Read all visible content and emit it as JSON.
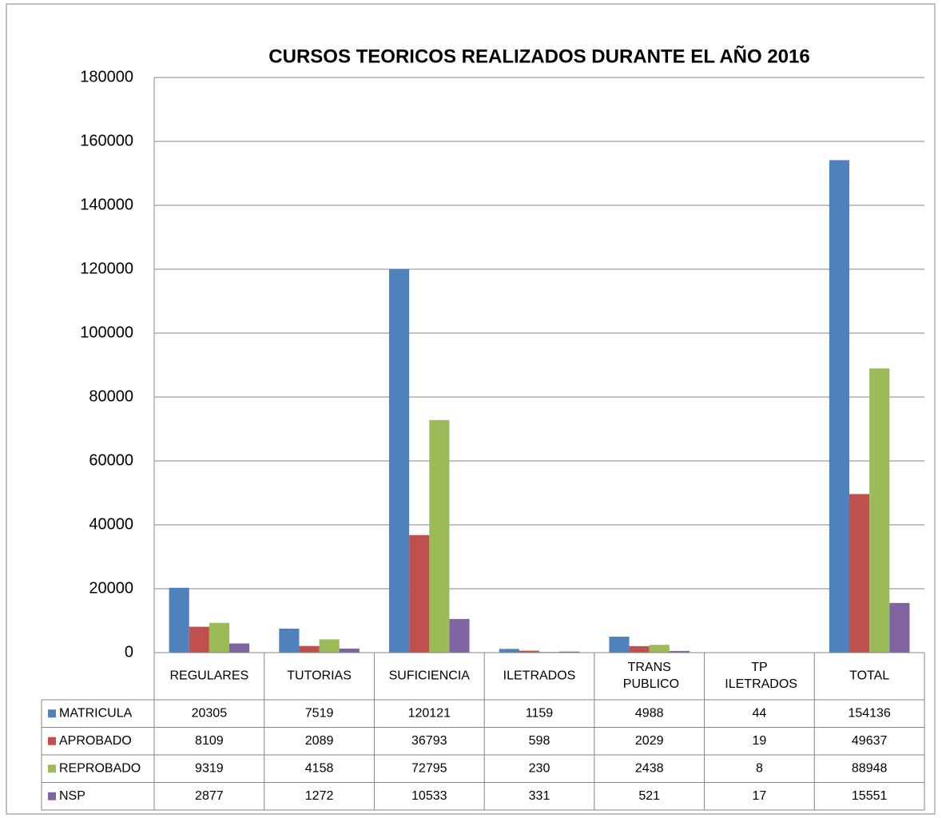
{
  "chart_data": {
    "type": "bar",
    "title": "CURSOS TEORICOS REALIZADOS DURANTE EL AÑO 2016",
    "categories": [
      "REGULARES",
      "TUTORIAS",
      "SUFICIENCIA",
      "ILETRADOS",
      "TRANS PUBLICO",
      "TP ILETRADOS",
      "TOTAL"
    ],
    "series": [
      {
        "name": "MATRICULA",
        "color": "#4f81bd",
        "values": [
          20305,
          7519,
          120121,
          1159,
          4988,
          44,
          154136
        ]
      },
      {
        "name": "APROBADO",
        "color": "#c0504d",
        "values": [
          8109,
          2089,
          36793,
          598,
          2029,
          19,
          49637
        ]
      },
      {
        "name": "REPROBADO",
        "color": "#9bbb59",
        "values": [
          9319,
          4158,
          72795,
          230,
          2438,
          8,
          88948
        ]
      },
      {
        "name": "NSP",
        "color": "#8064a2",
        "values": [
          2877,
          1272,
          10533,
          331,
          521,
          17,
          15551
        ]
      }
    ],
    "ylim": [
      0,
      180000
    ],
    "yticks": [
      0,
      20000,
      40000,
      60000,
      80000,
      100000,
      120000,
      140000,
      160000,
      180000
    ],
    "grid": true
  }
}
